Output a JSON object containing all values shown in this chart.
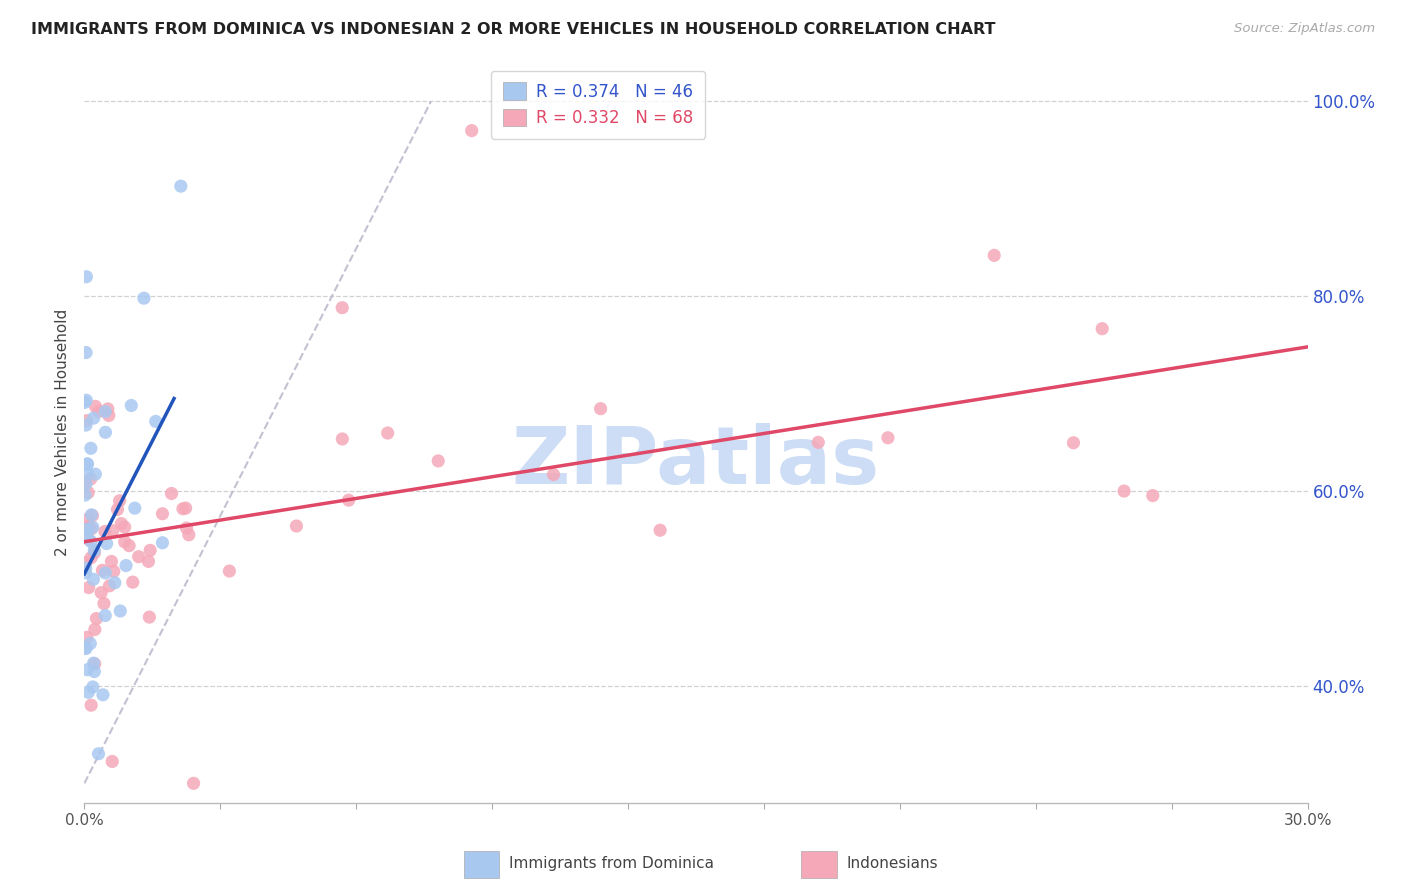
{
  "title": "IMMIGRANTS FROM DOMINICA VS INDONESIAN 2 OR MORE VEHICLES IN HOUSEHOLD CORRELATION CHART",
  "source": "Source: ZipAtlas.com",
  "ylabel": "2 or more Vehicles in Household",
  "legend_dominica": "Immigrants from Dominica",
  "legend_indonesian": "Indonesians",
  "r_dominica": 0.374,
  "n_dominica": 46,
  "r_indonesian": 0.332,
  "n_indonesian": 68,
  "color_dominica": "#a8c8f0",
  "color_indonesian": "#f5a8b8",
  "trend_color_dominica": "#2255bb",
  "trend_color_indonesian": "#e04868",
  "dash_color": "#bbbbcc",
  "watermark_text": "ZIPatlas",
  "watermark_color": "#ccddf5",
  "xmin": 0.0,
  "xmax": 0.3,
  "ymin": 0.28,
  "ymax": 1.04,
  "yticks": [
    0.4,
    0.6,
    0.8,
    1.0
  ],
  "ytick_labels": [
    "40.0%",
    "60.0%",
    "80.0%",
    "100.0%"
  ],
  "blue_trend_x": [
    0.0,
    0.022
  ],
  "blue_trend_y": [
    0.515,
    0.695
  ],
  "pink_trend_x": [
    0.0,
    0.3
  ],
  "pink_trend_y": [
    0.548,
    0.748
  ],
  "dash_line_x": [
    0.0,
    0.085
  ],
  "dash_line_y": [
    0.3,
    1.0
  ]
}
